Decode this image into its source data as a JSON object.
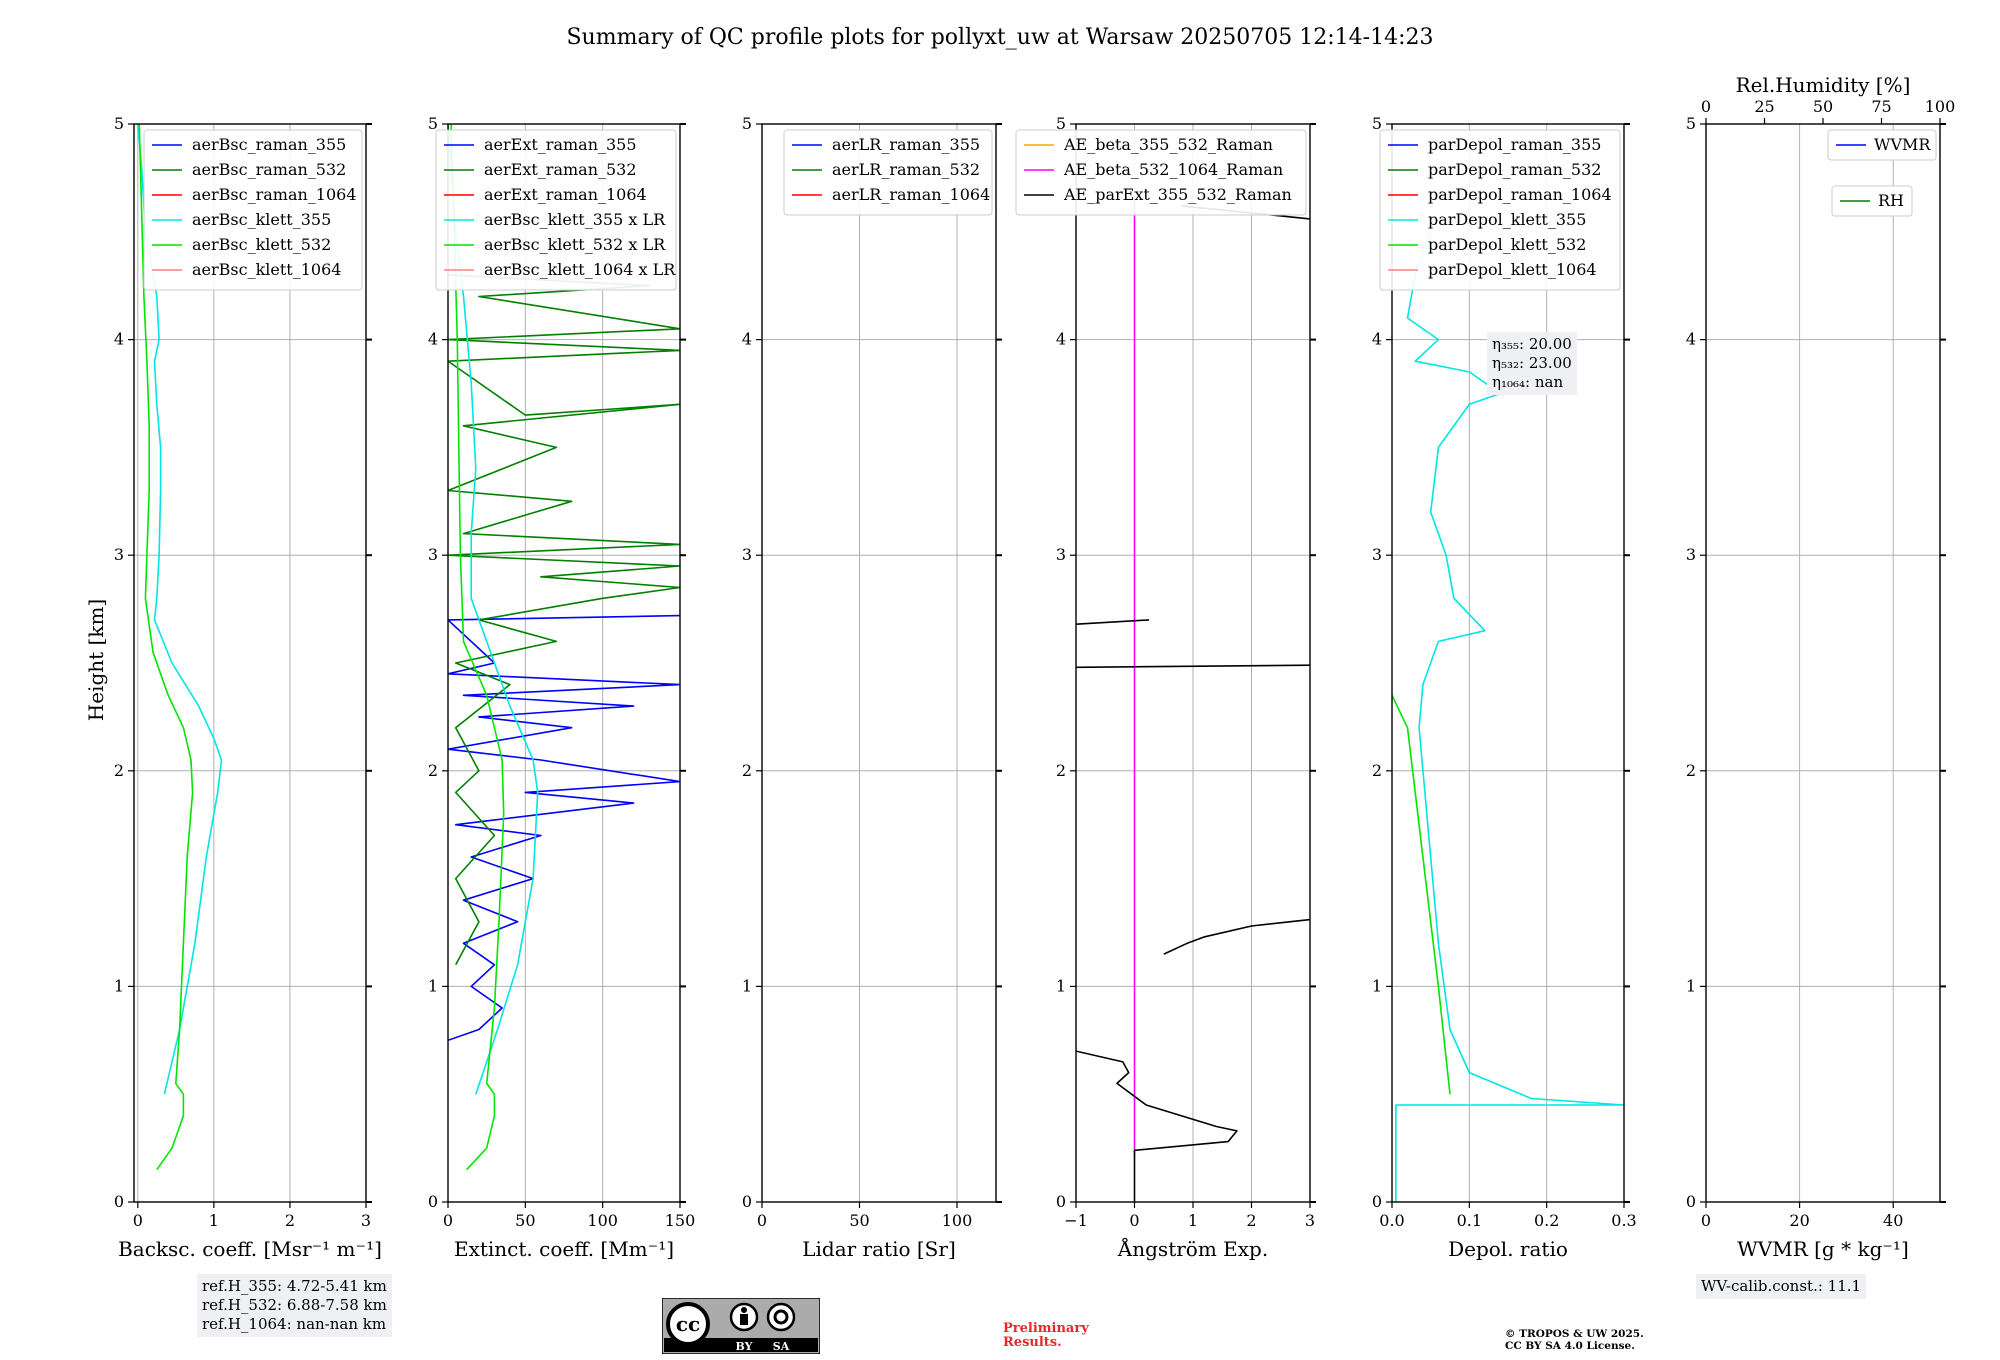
{
  "figure": {
    "title": "Summary of QC profile plots for pollyxt_uw at Warsaw 20250705 12:14-14:23",
    "y_label": "Height [km]",
    "y_ticks": [
      "0",
      "1",
      "2",
      "3",
      "4",
      "5"
    ]
  },
  "chart_data": [
    {
      "id": "bsc",
      "type": "line",
      "xlabel": "Backsc. coeff. [Msr⁻¹ m⁻¹]",
      "xlim": [
        -0.05,
        3
      ],
      "ylim": [
        0,
        5
      ],
      "xticks": [
        "0",
        "1",
        "2",
        "3"
      ],
      "series": [
        {
          "name": "aerBsc_raman_355",
          "color": "#0000ff",
          "points": []
        },
        {
          "name": "aerBsc_raman_532",
          "color": "#008000",
          "points": []
        },
        {
          "name": "aerBsc_raman_1064",
          "color": "#ff0000",
          "points": []
        },
        {
          "name": "aerBsc_klett_355",
          "color": "#00e5e5",
          "points": [
            [
              0.35,
              0.5
            ],
            [
              0.55,
              0.8
            ],
            [
              0.75,
              1.2
            ],
            [
              0.9,
              1.6
            ],
            [
              1.05,
              1.9
            ],
            [
              1.1,
              2.05
            ],
            [
              1.0,
              2.15
            ],
            [
              0.8,
              2.3
            ],
            [
              0.45,
              2.5
            ],
            [
              0.22,
              2.7
            ],
            [
              0.25,
              2.8
            ],
            [
              0.28,
              3.0
            ],
            [
              0.3,
              3.3
            ],
            [
              0.3,
              3.5
            ],
            [
              0.25,
              3.7
            ],
            [
              0.22,
              3.9
            ],
            [
              0.28,
              4.0
            ],
            [
              0.25,
              4.2
            ],
            [
              0.1,
              4.5
            ],
            [
              0.05,
              4.8
            ],
            [
              0.0,
              5.0
            ]
          ]
        },
        {
          "name": "aerBsc_klett_532",
          "color": "#00e600",
          "points": [
            [
              0.25,
              0.15
            ],
            [
              0.45,
              0.25
            ],
            [
              0.6,
              0.4
            ],
            [
              0.6,
              0.5
            ],
            [
              0.5,
              0.55
            ],
            [
              0.55,
              0.8
            ],
            [
              0.6,
              1.2
            ],
            [
              0.65,
              1.6
            ],
            [
              0.72,
              1.9
            ],
            [
              0.7,
              2.05
            ],
            [
              0.6,
              2.2
            ],
            [
              0.4,
              2.35
            ],
            [
              0.2,
              2.55
            ],
            [
              0.1,
              2.8
            ],
            [
              0.12,
              3.0
            ],
            [
              0.15,
              3.3
            ],
            [
              0.15,
              3.6
            ],
            [
              0.12,
              3.9
            ],
            [
              0.08,
              4.2
            ],
            [
              0.05,
              4.6
            ],
            [
              0.02,
              5.0
            ]
          ]
        },
        {
          "name": "aerBsc_klett_1064",
          "color": "#ff8080",
          "points": []
        }
      ],
      "legend_loc": "upper-right"
    },
    {
      "id": "ext",
      "type": "line",
      "xlabel": "Extinct. coeff. [Mm⁻¹]",
      "xlim": [
        0,
        150
      ],
      "ylim": [
        0,
        5
      ],
      "xticks": [
        "0",
        "50",
        "100",
        "150"
      ],
      "series": [
        {
          "name": "aerExt_raman_355",
          "color": "#0000ff",
          "points": [
            [
              0,
              0.75
            ],
            [
              20,
              0.8
            ],
            [
              35,
              0.9
            ],
            [
              15,
              1.0
            ],
            [
              30,
              1.1
            ],
            [
              10,
              1.2
            ],
            [
              45,
              1.3
            ],
            [
              10,
              1.4
            ],
            [
              55,
              1.5
            ],
            [
              15,
              1.6
            ],
            [
              60,
              1.7
            ],
            [
              5,
              1.75
            ],
            [
              120,
              1.85
            ],
            [
              50,
              1.9
            ],
            [
              150,
              1.95
            ],
            [
              60,
              2.05
            ],
            [
              0,
              2.1
            ],
            [
              80,
              2.2
            ],
            [
              20,
              2.25
            ],
            [
              120,
              2.3
            ],
            [
              10,
              2.35
            ],
            [
              150,
              2.4
            ],
            [
              0,
              2.45
            ],
            [
              30,
              2.5
            ],
            [
              0,
              2.7
            ],
            [
              150,
              2.72
            ]
          ]
        },
        {
          "name": "aerExt_raman_532",
          "color": "#008000",
          "points": [
            [
              5,
              1.1
            ],
            [
              20,
              1.3
            ],
            [
              5,
              1.5
            ],
            [
              30,
              1.7
            ],
            [
              5,
              1.9
            ],
            [
              20,
              2.0
            ],
            [
              5,
              2.2
            ],
            [
              40,
              2.4
            ],
            [
              5,
              2.5
            ],
            [
              70,
              2.6
            ],
            [
              20,
              2.7
            ],
            [
              100,
              2.8
            ],
            [
              150,
              2.85
            ],
            [
              60,
              2.9
            ],
            [
              150,
              2.95
            ],
            [
              0,
              3.0
            ],
            [
              150,
              3.05
            ],
            [
              10,
              3.1
            ],
            [
              80,
              3.25
            ],
            [
              0,
              3.3
            ],
            [
              70,
              3.5
            ],
            [
              10,
              3.6
            ],
            [
              150,
              3.7
            ],
            [
              50,
              3.65
            ],
            [
              0,
              3.9
            ],
            [
              150,
              3.95
            ],
            [
              0,
              4.0
            ],
            [
              150,
              4.05
            ],
            [
              20,
              4.2
            ],
            [
              130,
              4.25
            ],
            [
              0,
              4.3
            ]
          ]
        },
        {
          "name": "aerExt_raman_1064",
          "color": "#ff0000",
          "points": []
        },
        {
          "name": "aerBsc_klett_355 x LR",
          "color": "#00e5e5",
          "points": [
            [
              18,
              0.5
            ],
            [
              32,
              0.8
            ],
            [
              45,
              1.1
            ],
            [
              55,
              1.5
            ],
            [
              58,
              1.9
            ],
            [
              55,
              2.05
            ],
            [
              40,
              2.3
            ],
            [
              25,
              2.6
            ],
            [
              15,
              2.8
            ],
            [
              15,
              3.1
            ],
            [
              18,
              3.4
            ],
            [
              15,
              3.8
            ],
            [
              10,
              4.2
            ],
            [
              5,
              4.5
            ],
            [
              0,
              5.0
            ]
          ]
        },
        {
          "name": "aerBsc_klett_532 x LR",
          "color": "#00e600",
          "points": [
            [
              12,
              0.15
            ],
            [
              25,
              0.25
            ],
            [
              30,
              0.4
            ],
            [
              30,
              0.5
            ],
            [
              25,
              0.55
            ],
            [
              30,
              0.9
            ],
            [
              33,
              1.3
            ],
            [
              36,
              1.8
            ],
            [
              35,
              2.05
            ],
            [
              25,
              2.35
            ],
            [
              10,
              2.6
            ],
            [
              8,
              3.0
            ],
            [
              7,
              3.5
            ],
            [
              6,
              4.0
            ],
            [
              4,
              4.5
            ],
            [
              2,
              5.0
            ]
          ]
        },
        {
          "name": "aerBsc_klett_1064 x LR",
          "color": "#ff8080",
          "points": []
        }
      ],
      "legend_loc": "upper-right"
    },
    {
      "id": "lr",
      "type": "line",
      "xlabel": "Lidar ratio [Sr]",
      "xlim": [
        0,
        120
      ],
      "ylim": [
        0,
        5
      ],
      "xticks": [
        "0",
        "50",
        "100"
      ],
      "series": [
        {
          "name": "aerLR_raman_355",
          "color": "#0000ff",
          "points": []
        },
        {
          "name": "aerLR_raman_532",
          "color": "#008000",
          "points": []
        },
        {
          "name": "aerLR_raman_1064",
          "color": "#ff0000",
          "points": []
        }
      ],
      "legend_loc": "upper-right"
    },
    {
      "id": "ae",
      "type": "line",
      "xlabel": "Ångström Exp.",
      "xlim": [
        -1,
        3
      ],
      "ylim": [
        0,
        5
      ],
      "xticks": [
        "−1",
        "0",
        "1",
        "2",
        "3"
      ],
      "series": [
        {
          "name": "AE_beta_355_532_Raman",
          "color": "#ffa500",
          "points": []
        },
        {
          "name": "AE_beta_532_1064_Raman",
          "color": "#ff00ff",
          "points": [
            [
              0,
              0.22
            ],
            [
              0,
              4.65
            ]
          ]
        },
        {
          "name": "AE_parExt_355_532_Raman",
          "color": "#000000",
          "points": [
            [
              0,
              0.0
            ],
            [
              0,
              0.24
            ],
            [
              1.6,
              0.28
            ],
            [
              1.75,
              0.33
            ],
            [
              1.4,
              0.35
            ],
            [
              0.2,
              0.45
            ],
            [
              -0.3,
              0.55
            ],
            [
              -0.1,
              0.6
            ],
            [
              -0.2,
              0.65
            ],
            [
              -1,
              0.7
            ]
          ]
        },
        {
          "name": "ae-seg-2",
          "color": "#000000",
          "points": [
            [
              0.5,
              1.15
            ],
            [
              0.9,
              1.2
            ],
            [
              1.2,
              1.23
            ],
            [
              2.0,
              1.28
            ],
            [
              3.0,
              1.31
            ]
          ]
        },
        {
          "name": "ae-seg-3",
          "color": "#000000",
          "points": [
            [
              -1,
              2.48
            ],
            [
              3,
              2.49
            ]
          ]
        },
        {
          "name": "ae-seg-4",
          "color": "#000000",
          "points": [
            [
              -1,
              2.68
            ],
            [
              0.25,
              2.7
            ]
          ]
        },
        {
          "name": "ae-seg-5",
          "color": "#000000",
          "points": [
            [
              0.8,
              4.62
            ],
            [
              3,
              4.56
            ]
          ]
        }
      ],
      "legend_loc": "upper-right"
    },
    {
      "id": "depol",
      "type": "line",
      "xlabel": "Depol. ratio",
      "xlim": [
        0,
        0.3
      ],
      "ylim": [
        0,
        5
      ],
      "xticks": [
        "0.0",
        "0.1",
        "0.2",
        "0.3"
      ],
      "series": [
        {
          "name": "parDepol_raman_355",
          "color": "#0000ff",
          "points": []
        },
        {
          "name": "parDepol_raman_532",
          "color": "#008000",
          "points": []
        },
        {
          "name": "parDepol_raman_1064",
          "color": "#ff0000",
          "points": []
        },
        {
          "name": "parDepol_klett_355",
          "color": "#00e5e5",
          "points": [
            [
              0.005,
              0.0
            ],
            [
              0.005,
              0.45
            ],
            [
              0.3,
              0.45
            ],
            [
              0.18,
              0.48
            ],
            [
              0.1,
              0.6
            ],
            [
              0.075,
              0.8
            ],
            [
              0.06,
              1.2
            ],
            [
              0.045,
              1.8
            ],
            [
              0.035,
              2.2
            ],
            [
              0.04,
              2.4
            ],
            [
              0.06,
              2.6
            ],
            [
              0.12,
              2.65
            ],
            [
              0.08,
              2.8
            ],
            [
              0.07,
              3.0
            ],
            [
              0.05,
              3.2
            ],
            [
              0.06,
              3.5
            ],
            [
              0.1,
              3.7
            ],
            [
              0.14,
              3.75
            ],
            [
              0.1,
              3.85
            ],
            [
              0.03,
              3.9
            ],
            [
              0.06,
              4.0
            ],
            [
              0.02,
              4.1
            ],
            [
              0.03,
              4.3
            ],
            [
              0.05,
              4.5
            ]
          ]
        },
        {
          "name": "parDepol_klett_532",
          "color": "#00e600",
          "points": [
            [
              0.075,
              0.5
            ],
            [
              0.06,
              1.0
            ],
            [
              0.04,
              1.6
            ],
            [
              0.02,
              2.2
            ],
            [
              0.0,
              2.35
            ]
          ]
        },
        {
          "name": "parDepol_klett_1064",
          "color": "#ff8080",
          "points": []
        }
      ],
      "legend_loc": "upper-right"
    },
    {
      "id": "wv",
      "type": "line",
      "xlabel": "WVMR [g * kg⁻¹]",
      "xlim": [
        0,
        50
      ],
      "ylim": [
        0,
        5
      ],
      "xticks": [
        "0",
        "20",
        "40"
      ],
      "top_xlabel": "Rel.Humidity [%]",
      "top_xlim": [
        0,
        100
      ],
      "top_xticks": [
        "0",
        "25",
        "50",
        "75",
        "100"
      ],
      "series": [
        {
          "name": "WVMR",
          "color": "#0000ff",
          "points": []
        },
        {
          "name": "RH",
          "color": "#008000",
          "points": []
        }
      ],
      "legend_loc": "upper-right"
    }
  ],
  "annotations": {
    "ref_heights": [
      "ref.H_355: 4.72-5.41 km",
      "ref.H_532: 6.88-7.58 km",
      "ref.H_1064: nan-nan km"
    ],
    "eta_lines": [
      "η₃₅₅: 20.00",
      "η₅₃₂: 23.00",
      "η₁₀₆₄: nan"
    ],
    "wv_calib": "WV-calib.const.: 11.1",
    "prelim_1": "Preliminary",
    "prelim_2": "Results.",
    "copyright_1": "© TROPOS & UW 2025.",
    "copyright_2": "CC BY SA 4.0 License.",
    "cc_by": "BY",
    "cc_sa": "SA"
  },
  "colors": {
    "grid": "#b0b0b0",
    "legend_bg": "#ffffff",
    "info_bg": "#eef0f4",
    "prelim": "#e8262c"
  }
}
